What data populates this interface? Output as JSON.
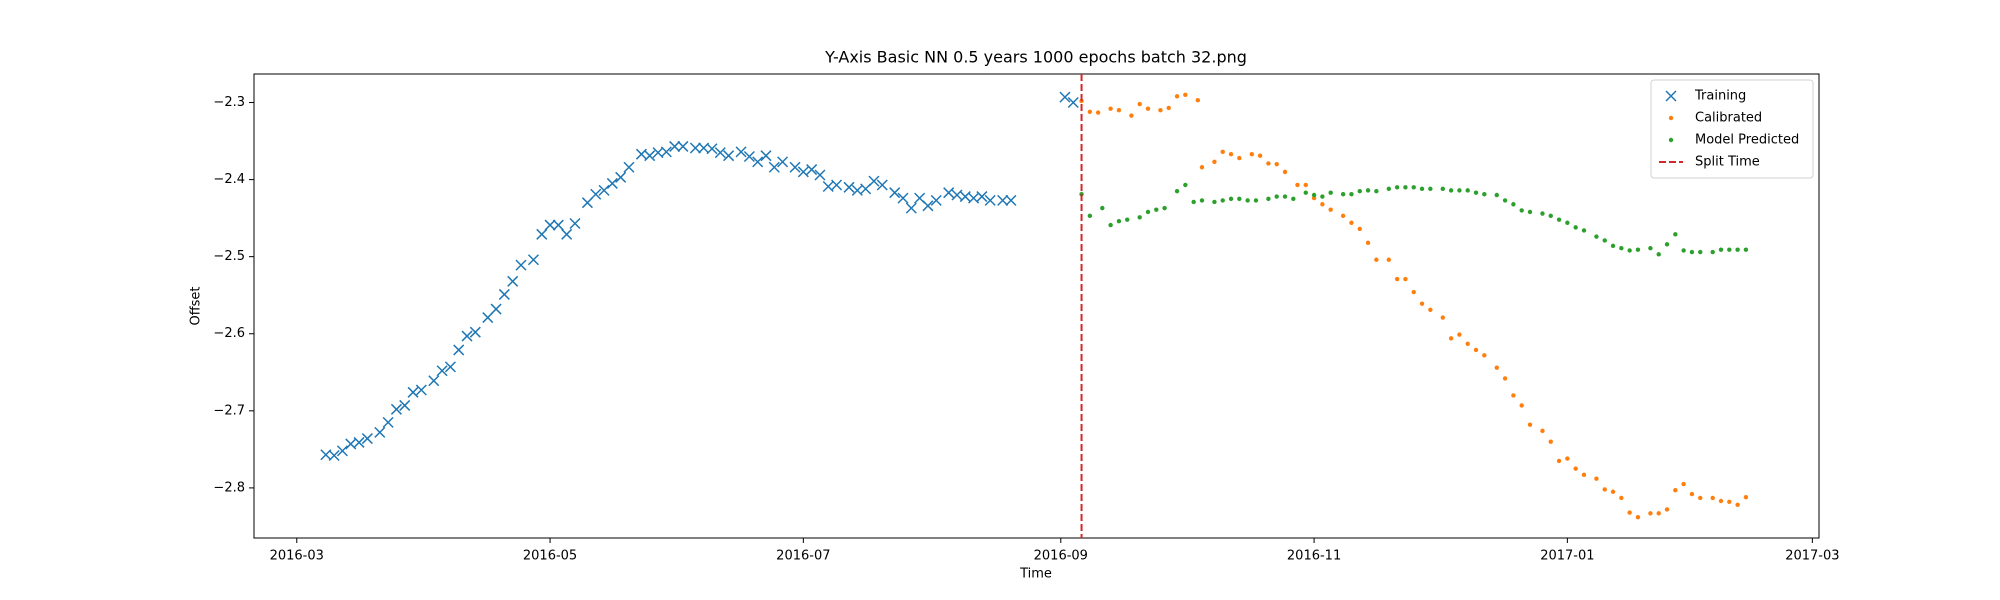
{
  "chart_data": {
    "type": "scatter",
    "title": "Y-Axis Basic NN 0.5 years 1000 epochs batch 32.png",
    "x_label": "Time",
    "y_label": "Offset",
    "xlim": [
      16850.7,
      17227.6
    ],
    "ylim": [
      -2.865,
      -2.263
    ],
    "xticks": [
      {
        "value": 16861,
        "label": "2016-03"
      },
      {
        "value": 16922,
        "label": "2016-05"
      },
      {
        "value": 16983,
        "label": "2016-07"
      },
      {
        "value": 17045,
        "label": "2016-09"
      },
      {
        "value": 17106,
        "label": "2016-11"
      },
      {
        "value": 17167,
        "label": "2017-01"
      },
      {
        "value": 17226,
        "label": "2017-03"
      }
    ],
    "yticks": [
      {
        "value": -2.8,
        "label": "−2.8"
      },
      {
        "value": -2.7,
        "label": "−2.7"
      },
      {
        "value": -2.6,
        "label": "−2.6"
      },
      {
        "value": -2.5,
        "label": "−2.5"
      },
      {
        "value": -2.4,
        "label": "−2.4"
      },
      {
        "value": -2.3,
        "label": "−2.3"
      }
    ],
    "legend": "upper right",
    "series": [
      {
        "name": "Training",
        "color": "#1f77b4",
        "marker": "x",
        "x": [
          16868,
          16870,
          16872,
          16874,
          16876,
          16878,
          16881,
          16883,
          16885,
          16887,
          16889,
          16891,
          16894,
          16896,
          16898,
          16900,
          16902,
          16904,
          16907,
          16909,
          16911,
          16913,
          16915,
          16918,
          16920,
          16922,
          16924,
          16926,
          16928,
          16931,
          16933,
          16935,
          16937,
          16939,
          16941,
          16944,
          16946,
          16948,
          16950,
          16952,
          16954,
          16957,
          16959,
          16961,
          16963,
          16965,
          16968,
          16970,
          16972,
          16974,
          16976,
          16978,
          16981,
          16983,
          16985,
          16987,
          16989,
          16991,
          16994,
          16996,
          16998,
          17000,
          17002,
          17005,
          17007,
          17009,
          17011,
          17013,
          17015,
          17018,
          17020,
          17022,
          17024,
          17026,
          17028,
          17031,
          17033,
          17046,
          17048
        ],
        "values": [
          -2.757,
          -2.758,
          -2.752,
          -2.743,
          -2.741,
          -2.736,
          -2.728,
          -2.715,
          -2.698,
          -2.693,
          -2.676,
          -2.673,
          -2.661,
          -2.648,
          -2.643,
          -2.621,
          -2.603,
          -2.598,
          -2.579,
          -2.568,
          -2.549,
          -2.532,
          -2.511,
          -2.504,
          -2.471,
          -2.459,
          -2.459,
          -2.471,
          -2.457,
          -2.43,
          -2.419,
          -2.414,
          -2.405,
          -2.397,
          -2.384,
          -2.367,
          -2.369,
          -2.365,
          -2.364,
          -2.357,
          -2.357,
          -2.359,
          -2.359,
          -2.36,
          -2.365,
          -2.369,
          -2.364,
          -2.37,
          -2.377,
          -2.369,
          -2.384,
          -2.377,
          -2.384,
          -2.39,
          -2.387,
          -2.394,
          -2.409,
          -2.407,
          -2.41,
          -2.414,
          -2.412,
          -2.402,
          -2.407,
          -2.417,
          -2.424,
          -2.437,
          -2.424,
          -2.434,
          -2.427,
          -2.417,
          -2.42,
          -2.422,
          -2.424,
          -2.422,
          -2.427,
          -2.427,
          -2.427,
          -2.293,
          -2.3
        ]
      },
      {
        "name": "Calibrated",
        "color": "#ff7f0e",
        "marker": "dot",
        "x": [
          17050,
          17052,
          17054,
          17057,
          17059,
          17062,
          17064,
          17066,
          17069,
          17071,
          17073,
          17075,
          17078,
          17079,
          17082,
          17084,
          17086,
          17088,
          17091,
          17093,
          17095,
          17097,
          17099,
          17102,
          17104,
          17106,
          17108,
          17110,
          17113,
          17115,
          17117,
          17119,
          17121,
          17124,
          17126,
          17128,
          17130,
          17132,
          17134,
          17137,
          17139,
          17141,
          17143,
          17145,
          17147,
          17150,
          17152,
          17154,
          17156,
          17158,
          17161,
          17163,
          17165,
          17167,
          17169,
          17171,
          17174,
          17176,
          17178,
          17180,
          17182,
          17184,
          17187,
          17189,
          17191,
          17193,
          17195,
          17197,
          17199,
          17202,
          17204,
          17206,
          17208,
          17210
        ],
        "values": [
          -2.298,
          -2.312,
          -2.313,
          -2.308,
          -2.31,
          -2.317,
          -2.302,
          -2.308,
          -2.31,
          -2.307,
          -2.292,
          -2.29,
          -2.297,
          -2.384,
          -2.377,
          -2.364,
          -2.367,
          -2.372,
          -2.367,
          -2.369,
          -2.379,
          -2.38,
          -2.39,
          -2.407,
          -2.407,
          -2.424,
          -2.432,
          -2.439,
          -2.447,
          -2.456,
          -2.464,
          -2.482,
          -2.504,
          -2.504,
          -2.529,
          -2.529,
          -2.546,
          -2.561,
          -2.569,
          -2.579,
          -2.606,
          -2.601,
          -2.613,
          -2.621,
          -2.628,
          -2.644,
          -2.658,
          -2.68,
          -2.693,
          -2.718,
          -2.726,
          -2.74,
          -2.765,
          -2.762,
          -2.775,
          -2.783,
          -2.788,
          -2.802,
          -2.805,
          -2.813,
          -2.832,
          -2.838,
          -2.833,
          -2.833,
          -2.828,
          -2.803,
          -2.795,
          -2.808,
          -2.813,
          -2.813,
          -2.817,
          -2.818,
          -2.822,
          -2.812
        ]
      },
      {
        "name": "Model Predicted",
        "color": "#2ca02c",
        "marker": "dot",
        "x": [
          17050,
          17052,
          17055,
          17057,
          17059,
          17061,
          17064,
          17066,
          17068,
          17070,
          17073,
          17075,
          17077,
          17079,
          17082,
          17084,
          17086,
          17088,
          17090,
          17092,
          17095,
          17097,
          17099,
          17101,
          17104,
          17106,
          17108,
          17110,
          17113,
          17115,
          17117,
          17119,
          17121,
          17124,
          17126,
          17128,
          17130,
          17132,
          17134,
          17137,
          17139,
          17141,
          17143,
          17145,
          17147,
          17150,
          17152,
          17154,
          17156,
          17158,
          17161,
          17163,
          17165,
          17167,
          17169,
          17171,
          17174,
          17176,
          17178,
          17180,
          17182,
          17184,
          17187,
          17189,
          17191,
          17193,
          17195,
          17197,
          17199,
          17202,
          17204,
          17206,
          17208,
          17210
        ],
        "values": [
          -2.419,
          -2.447,
          -2.437,
          -2.459,
          -2.454,
          -2.452,
          -2.449,
          -2.442,
          -2.439,
          -2.437,
          -2.415,
          -2.407,
          -2.429,
          -2.427,
          -2.429,
          -2.427,
          -2.425,
          -2.425,
          -2.427,
          -2.427,
          -2.425,
          -2.422,
          -2.422,
          -2.425,
          -2.417,
          -2.42,
          -2.422,
          -2.417,
          -2.419,
          -2.419,
          -2.415,
          -2.414,
          -2.415,
          -2.412,
          -2.41,
          -2.41,
          -2.41,
          -2.412,
          -2.412,
          -2.412,
          -2.414,
          -2.414,
          -2.414,
          -2.417,
          -2.419,
          -2.42,
          -2.427,
          -2.432,
          -2.44,
          -2.442,
          -2.444,
          -2.447,
          -2.452,
          -2.456,
          -2.462,
          -2.466,
          -2.474,
          -2.479,
          -2.486,
          -2.489,
          -2.492,
          -2.491,
          -2.489,
          -2.497,
          -2.484,
          -2.471,
          -2.492,
          -2.494,
          -2.494,
          -2.494,
          -2.491,
          -2.491,
          -2.491,
          -2.491
        ]
      }
    ],
    "vline": {
      "name": "Split Time",
      "x": 17050,
      "color": "#d62728"
    }
  }
}
